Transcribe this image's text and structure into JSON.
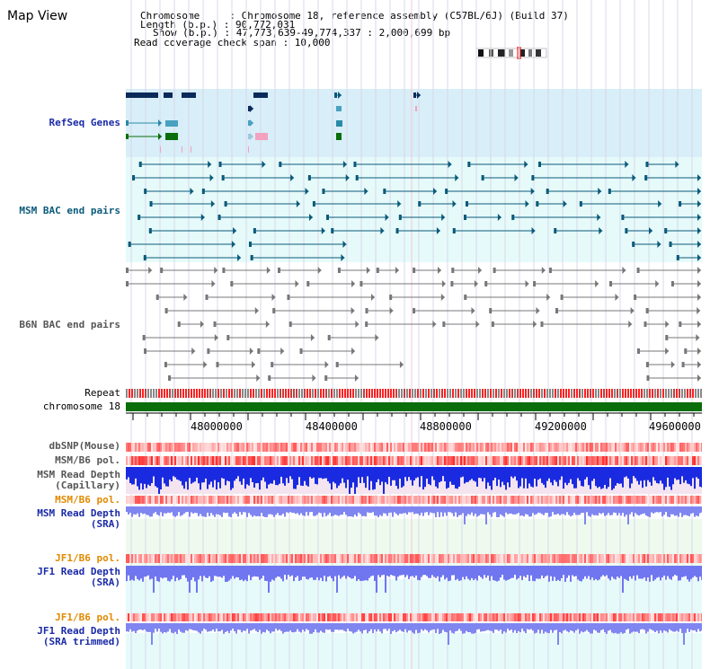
{
  "title": "Map View",
  "info": {
    "line1": "Chromosome     : Chromosome 18, reference assembly (C57BL/6J) (Build 37)",
    "line2": "Length (b.p.) : 90,772,031",
    "line3": "Show (b.p.) : 47,773,639-49,774,337 : 2,000,699 bp",
    "line4": "Read coverage check span : 10,000"
  },
  "tracks": {
    "refseq": "RefSeq Genes",
    "msm_bac": "MSM BAC end pairs",
    "b6n_bac": "B6N BAC end pairs",
    "repeat": "Repeat",
    "chromosome": "chromosome 18",
    "dbsnp": "dbSNP(Mouse)",
    "msm_b6_pol_1": "MSM/B6 pol.",
    "msm_read_depth_cap": "MSM Read Depth\n(Capillary)",
    "msm_b6_pol_2": "MSM/B6 pol.",
    "msm_read_depth_sra": "MSM Read Depth\n(SRA)",
    "jf1_b6_pol_1": "JF1/B6 pol.",
    "jf1_read_depth_sra": "JF1 Read Depth\n(SRA)",
    "jf1_b6_pol_2": "JF1/B6 pol.",
    "jf1_read_depth_trim": "JF1 Read Depth\n(SRA trimmed)"
  },
  "axis": {
    "ticks": [
      "48000000",
      "48400000",
      "48800000",
      "49200000",
      "49600000"
    ]
  },
  "colors": {
    "refseq_bg": "#d8eef8",
    "msm_bg": "#e6fafa",
    "b6n_bg": "#ffffff",
    "chrom": "#0a6e0a",
    "depth_blue": "#1a2ae0",
    "depth_light": "#7f86f0",
    "pol_red": "#ff3030",
    "orange": "#e08a00"
  }
}
